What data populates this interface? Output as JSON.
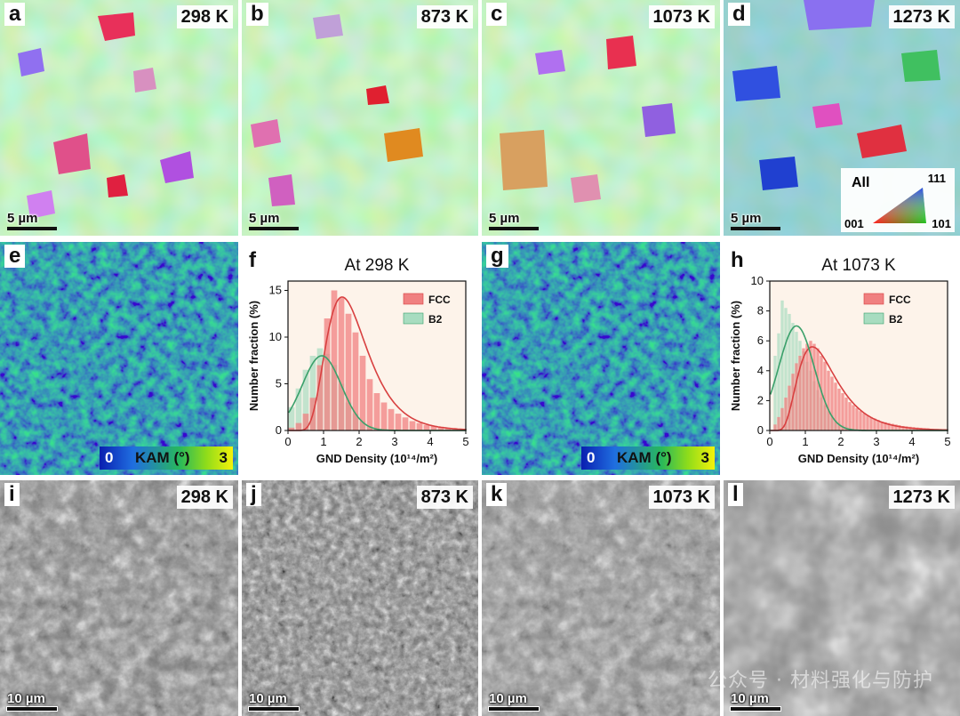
{
  "ebsd_panels": [
    {
      "letter": "a",
      "temp": "298 K",
      "scale": "5 µm"
    },
    {
      "letter": "b",
      "temp": "873 K",
      "scale": "5 µm"
    },
    {
      "letter": "c",
      "temp": "1073 K",
      "scale": "5 µm"
    },
    {
      "letter": "d",
      "temp": "1273 K",
      "scale": "5 µm"
    }
  ],
  "ipf_legend": {
    "all": "All",
    "c111": "111",
    "c001": "001",
    "c101": "101"
  },
  "kam_panels": [
    {
      "letter": "e",
      "zero": "0",
      "label": "KAM (°)",
      "max": "3"
    },
    {
      "letter": "g",
      "zero": "0",
      "label": "KAM (°)",
      "max": "3"
    }
  ],
  "sem_panels": [
    {
      "letter": "i",
      "temp": "298 K",
      "scale": "10 µm"
    },
    {
      "letter": "j",
      "temp": "873 K",
      "scale": "10 µm"
    },
    {
      "letter": "k",
      "temp": "1073 K",
      "scale": "10 µm"
    },
    {
      "letter": "l",
      "temp": "1273 K",
      "scale": "10 µm"
    }
  ],
  "watermark": "公众号 · 材料强化与防护",
  "colors": {
    "fcc": "#f08080",
    "b2": "#a8dcc0",
    "fcc_line": "#d84040",
    "b2_line": "#3aa06a"
  },
  "chart_data": [
    {
      "type": "bar",
      "panel": "f",
      "title": "At 298 K",
      "xlabel": "GND Density (10¹⁴/m²)",
      "ylabel": "Number fraction (%)",
      "xlim": [
        0,
        5
      ],
      "ylim": [
        0,
        16
      ],
      "xticks": [
        0,
        1,
        2,
        3,
        4,
        5
      ],
      "yticks": [
        0,
        5,
        10,
        15
      ],
      "bin_width": 0.2,
      "series": [
        {
          "name": "FCC",
          "color": "#f08080",
          "x": [
            0.1,
            0.3,
            0.5,
            0.7,
            0.9,
            1.1,
            1.3,
            1.5,
            1.7,
            1.9,
            2.1,
            2.3,
            2.5,
            2.7,
            2.9,
            3.1,
            3.3,
            3.5,
            3.7,
            3.9,
            4.1,
            4.3,
            4.5,
            4.7,
            4.9
          ],
          "values": [
            0.3,
            0.8,
            1.8,
            3.5,
            7.0,
            12.0,
            15.0,
            14.2,
            12.5,
            10.5,
            8.0,
            5.5,
            4.0,
            3.0,
            2.3,
            1.8,
            1.4,
            1.0,
            0.8,
            0.6,
            0.5,
            0.4,
            0.3,
            0.2,
            0.15
          ]
        },
        {
          "name": "B2",
          "color": "#a8dcc0",
          "x": [
            0.1,
            0.3,
            0.5,
            0.7,
            0.9,
            1.1,
            1.3,
            1.5,
            1.7,
            1.9,
            2.1,
            2.3,
            2.5
          ],
          "values": [
            2.5,
            4.5,
            6.5,
            8.0,
            8.8,
            8.2,
            7.0,
            5.0,
            3.0,
            1.8,
            1.0,
            0.5,
            0.2
          ]
        }
      ],
      "fits": [
        {
          "name": "FCC",
          "color": "#d84040",
          "type": "lognormal",
          "mu": 0.42,
          "sigma": 0.38,
          "scale": 14.3
        },
        {
          "name": "B2",
          "color": "#3aa06a",
          "type": "gaussian",
          "center": 0.95,
          "width": 0.55,
          "amp": 8.0
        }
      ]
    },
    {
      "type": "bar",
      "panel": "h",
      "title": "At 1073 K",
      "xlabel": "GND Density (10¹⁴/m²)",
      "ylabel": "Number fraction (%)",
      "xlim": [
        0,
        5
      ],
      "ylim": [
        0,
        10
      ],
      "xticks": [
        0,
        1,
        2,
        3,
        4,
        5
      ],
      "yticks": [
        0,
        2,
        4,
        6,
        8,
        10
      ],
      "bin_width": 0.1,
      "series": [
        {
          "name": "FCC",
          "color": "#f08080",
          "x": [
            0.15,
            0.25,
            0.35,
            0.45,
            0.55,
            0.65,
            0.75,
            0.85,
            0.95,
            1.05,
            1.15,
            1.25,
            1.35,
            1.45,
            1.55,
            1.65,
            1.75,
            1.85,
            1.95,
            2.05,
            2.15,
            2.25,
            2.35,
            2.45,
            2.55,
            2.65,
            2.75,
            2.85,
            2.95,
            3.05,
            3.15,
            3.25,
            3.35,
            3.45,
            3.55,
            3.65,
            3.75,
            3.85,
            3.95,
            4.05,
            4.15,
            4.25,
            4.35,
            4.45,
            4.55,
            4.65,
            4.75,
            4.85,
            4.95
          ],
          "values": [
            0.4,
            0.9,
            1.5,
            2.2,
            3.0,
            3.8,
            4.5,
            5.0,
            5.5,
            5.8,
            6.0,
            5.8,
            5.5,
            5.0,
            4.6,
            4.0,
            3.6,
            3.2,
            2.8,
            2.5,
            2.2,
            1.9,
            1.7,
            1.5,
            1.3,
            1.15,
            1.0,
            0.9,
            0.8,
            0.7,
            0.6,
            0.55,
            0.5,
            0.45,
            0.4,
            0.35,
            0.3,
            0.28,
            0.25,
            0.22,
            0.2,
            0.18,
            0.16,
            0.14,
            0.12,
            0.1,
            0.09,
            0.08,
            0.07
          ]
        },
        {
          "name": "B2",
          "color": "#a8dcc0",
          "x": [
            0.15,
            0.25,
            0.35,
            0.45,
            0.55,
            0.65,
            0.75,
            0.85,
            0.95,
            1.05,
            1.15,
            1.25,
            1.35,
            1.45,
            1.55,
            1.65,
            1.75,
            1.85,
            1.95,
            2.05,
            2.15,
            2.25
          ],
          "values": [
            5.0,
            6.5,
            8.7,
            8.2,
            7.8,
            7.2,
            6.6,
            6.0,
            5.3,
            4.6,
            4.0,
            3.3,
            2.7,
            2.2,
            1.7,
            1.3,
            1.0,
            0.7,
            0.5,
            0.35,
            0.25,
            0.15
          ]
        }
      ],
      "fits": [
        {
          "name": "FCC",
          "color": "#d84040",
          "type": "lognormal",
          "mu": 0.18,
          "sigma": 0.45,
          "scale": 5.6
        },
        {
          "name": "B2",
          "color": "#3aa06a",
          "type": "gaussian",
          "center": 0.75,
          "width": 0.5,
          "amp": 7.0
        }
      ]
    }
  ]
}
